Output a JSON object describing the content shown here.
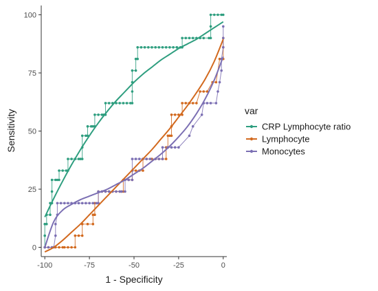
{
  "chart_data": {
    "type": "line",
    "xlabel": "1 - Specificity",
    "ylabel": "Sensitivity",
    "xlim": [
      -102,
      2
    ],
    "ylim": [
      -4,
      104
    ],
    "x_ticks": [
      -100,
      -75,
      -50,
      -25,
      0
    ],
    "y_ticks": [
      0,
      25,
      50,
      75,
      100
    ],
    "grid": false,
    "legend": {
      "title": "var",
      "placement": "right"
    },
    "series": [
      {
        "name": "CRP Lymphocyte ratio",
        "color": "#2e9e7f",
        "points": [
          [
            -100,
            0
          ],
          [
            -100,
            5
          ],
          [
            -100,
            10
          ],
          [
            -99,
            10
          ],
          [
            -99,
            14
          ],
          [
            -97,
            14
          ],
          [
            -97,
            19
          ],
          [
            -96,
            19
          ],
          [
            -96,
            24
          ],
          [
            -96,
            29
          ],
          [
            -94,
            29
          ],
          [
            -93,
            29
          ],
          [
            -92,
            29
          ],
          [
            -92,
            33
          ],
          [
            -90,
            33
          ],
          [
            -88,
            33
          ],
          [
            -87,
            33
          ],
          [
            -87,
            38
          ],
          [
            -85,
            38
          ],
          [
            -83,
            38
          ],
          [
            -81,
            38
          ],
          [
            -80,
            38
          ],
          [
            -79,
            38
          ],
          [
            -79,
            43
          ],
          [
            -79,
            48
          ],
          [
            -77,
            48
          ],
          [
            -76,
            48
          ],
          [
            -76,
            52
          ],
          [
            -74,
            52
          ],
          [
            -73,
            52
          ],
          [
            -72,
            52
          ],
          [
            -72,
            57
          ],
          [
            -70,
            57
          ],
          [
            -68,
            57
          ],
          [
            -67,
            57
          ],
          [
            -66,
            57
          ],
          [
            -66,
            62
          ],
          [
            -64,
            62
          ],
          [
            -62,
            62
          ],
          [
            -60,
            62
          ],
          [
            -58,
            62
          ],
          [
            -56,
            62
          ],
          [
            -54,
            62
          ],
          [
            -52,
            62
          ],
          [
            -51,
            62
          ],
          [
            -51,
            67
          ],
          [
            -51,
            71
          ],
          [
            -51,
            76
          ],
          [
            -49,
            76
          ],
          [
            -49,
            81
          ],
          [
            -48,
            81
          ],
          [
            -48,
            86
          ],
          [
            -46,
            86
          ],
          [
            -44,
            86
          ],
          [
            -42,
            86
          ],
          [
            -40,
            86
          ],
          [
            -38,
            86
          ],
          [
            -36,
            86
          ],
          [
            -34,
            86
          ],
          [
            -32,
            86
          ],
          [
            -30,
            86
          ],
          [
            -28,
            86
          ],
          [
            -26,
            86
          ],
          [
            -24,
            86
          ],
          [
            -23,
            86
          ],
          [
            -23,
            90
          ],
          [
            -21,
            90
          ],
          [
            -19,
            90
          ],
          [
            -17,
            90
          ],
          [
            -15,
            90
          ],
          [
            -13,
            90
          ],
          [
            -11,
            90
          ],
          [
            -8,
            90
          ],
          [
            -7,
            90
          ],
          [
            -7,
            95
          ],
          [
            -7,
            100
          ],
          [
            -5,
            100
          ],
          [
            -3,
            100
          ],
          [
            -1,
            100
          ],
          [
            0,
            100
          ]
        ],
        "fit": [
          [
            -100,
            13
          ],
          [
            -95,
            21
          ],
          [
            -90,
            28.5
          ],
          [
            -85,
            35.5
          ],
          [
            -80,
            42
          ],
          [
            -75,
            48
          ],
          [
            -70,
            53.5
          ],
          [
            -65,
            58.5
          ],
          [
            -60,
            63
          ],
          [
            -55,
            67
          ],
          [
            -50,
            71
          ],
          [
            -45,
            74.5
          ],
          [
            -40,
            77.5
          ],
          [
            -35,
            80.5
          ],
          [
            -30,
            83
          ],
          [
            -25,
            85.5
          ],
          [
            -20,
            87.5
          ],
          [
            -15,
            89.5
          ],
          [
            -10,
            92
          ],
          [
            -5,
            94.5
          ],
          [
            0,
            97
          ]
        ]
      },
      {
        "name": "Lymphocyte",
        "color": "#d2691e",
        "points": [
          [
            -100,
            0
          ],
          [
            -98,
            0
          ],
          [
            -96,
            0
          ],
          [
            -94,
            0
          ],
          [
            -92,
            0
          ],
          [
            -90,
            0
          ],
          [
            -89,
            0
          ],
          [
            -87,
            0
          ],
          [
            -85,
            0
          ],
          [
            -83,
            0
          ],
          [
            -83,
            5
          ],
          [
            -81,
            5
          ],
          [
            -79,
            5
          ],
          [
            -79,
            10
          ],
          [
            -76,
            10
          ],
          [
            -73,
            10
          ],
          [
            -73,
            14
          ],
          [
            -72,
            14
          ],
          [
            -72,
            19
          ],
          [
            -70,
            19
          ],
          [
            -70,
            24
          ],
          [
            -68,
            24
          ],
          [
            -66,
            24
          ],
          [
            -64,
            24
          ],
          [
            -62,
            24
          ],
          [
            -60,
            24
          ],
          [
            -58,
            24
          ],
          [
            -57,
            24
          ],
          [
            -56,
            24
          ],
          [
            -56,
            29
          ],
          [
            -53,
            29
          ],
          [
            -51,
            29
          ],
          [
            -51,
            33
          ],
          [
            -49,
            33
          ],
          [
            -47,
            33
          ],
          [
            -45,
            33
          ],
          [
            -45,
            38
          ],
          [
            -43,
            38
          ],
          [
            -40,
            38
          ],
          [
            -38,
            38
          ],
          [
            -36,
            38
          ],
          [
            -34,
            38
          ],
          [
            -32,
            38
          ],
          [
            -32,
            43
          ],
          [
            -31,
            43
          ],
          [
            -31,
            48
          ],
          [
            -30,
            48
          ],
          [
            -29,
            48
          ],
          [
            -29,
            52
          ],
          [
            -29,
            57
          ],
          [
            -27,
            57
          ],
          [
            -25,
            57
          ],
          [
            -23,
            57
          ],
          [
            -23,
            62
          ],
          [
            -21,
            62
          ],
          [
            -19,
            62
          ],
          [
            -17,
            62
          ],
          [
            -15,
            62
          ],
          [
            -13,
            67
          ],
          [
            -11,
            67
          ],
          [
            -9,
            67
          ],
          [
            -6,
            71
          ],
          [
            -4,
            71
          ],
          [
            -2,
            81
          ],
          [
            0,
            81
          ],
          [
            0,
            86
          ],
          [
            0,
            90
          ]
        ],
        "fit": [
          [
            -100,
            -2
          ],
          [
            -95,
            0
          ],
          [
            -90,
            3
          ],
          [
            -85,
            6.5
          ],
          [
            -80,
            10
          ],
          [
            -75,
            14
          ],
          [
            -70,
            18
          ],
          [
            -65,
            22
          ],
          [
            -60,
            26
          ],
          [
            -55,
            30
          ],
          [
            -50,
            34
          ],
          [
            -45,
            38
          ],
          [
            -40,
            42
          ],
          [
            -35,
            46.5
          ],
          [
            -30,
            51
          ],
          [
            -25,
            56
          ],
          [
            -20,
            61
          ],
          [
            -15,
            66.5
          ],
          [
            -10,
            72.5
          ],
          [
            -5,
            80
          ],
          [
            0,
            89.5
          ]
        ]
      },
      {
        "name": "Monocytes",
        "color": "#7b6fb3",
        "points": [
          [
            -100,
            0
          ],
          [
            -98,
            0
          ],
          [
            -96,
            0
          ],
          [
            -95,
            0
          ],
          [
            -94,
            5
          ],
          [
            -94,
            10
          ],
          [
            -93,
            14
          ],
          [
            -93,
            19
          ],
          [
            -91,
            19
          ],
          [
            -89,
            19
          ],
          [
            -87,
            19
          ],
          [
            -85,
            19
          ],
          [
            -83,
            19
          ],
          [
            -81,
            19
          ],
          [
            -79,
            19
          ],
          [
            -77,
            19
          ],
          [
            -75,
            19
          ],
          [
            -73,
            19
          ],
          [
            -71,
            19
          ],
          [
            -70,
            19
          ],
          [
            -70,
            24
          ],
          [
            -68,
            24
          ],
          [
            -66,
            24
          ],
          [
            -64,
            24
          ],
          [
            -62,
            24
          ],
          [
            -60,
            24
          ],
          [
            -58,
            24
          ],
          [
            -57,
            24
          ],
          [
            -55,
            24
          ],
          [
            -55,
            29
          ],
          [
            -53,
            29
          ],
          [
            -51,
            29
          ],
          [
            -51,
            33
          ],
          [
            -51,
            38
          ],
          [
            -49,
            38
          ],
          [
            -47,
            38
          ],
          [
            -45,
            38
          ],
          [
            -43,
            38
          ],
          [
            -41,
            38
          ],
          [
            -38,
            38
          ],
          [
            -36,
            38
          ],
          [
            -34,
            38
          ],
          [
            -34,
            43
          ],
          [
            -31,
            43
          ],
          [
            -29,
            43
          ],
          [
            -27,
            43
          ],
          [
            -25,
            43
          ],
          [
            -19,
            48
          ],
          [
            -17,
            52
          ],
          [
            -12,
            57
          ],
          [
            -11,
            62
          ],
          [
            -9,
            62
          ],
          [
            -7,
            62
          ],
          [
            -4,
            62
          ],
          [
            -3,
            67
          ],
          [
            -2,
            71
          ],
          [
            -1,
            76
          ],
          [
            -1,
            81
          ],
          [
            0,
            86
          ],
          [
            0,
            90
          ],
          [
            0,
            95
          ]
        ],
        "fit": [
          [
            -100,
            0
          ],
          [
            -95,
            11
          ],
          [
            -90,
            16
          ],
          [
            -85,
            18.5
          ],
          [
            -80,
            20.5
          ],
          [
            -75,
            22
          ],
          [
            -70,
            23.5
          ],
          [
            -65,
            25
          ],
          [
            -60,
            27
          ],
          [
            -55,
            29
          ],
          [
            -50,
            31.5
          ],
          [
            -45,
            34
          ],
          [
            -40,
            37
          ],
          [
            -35,
            40
          ],
          [
            -30,
            43.5
          ],
          [
            -25,
            47.5
          ],
          [
            -20,
            52
          ],
          [
            -15,
            57.5
          ],
          [
            -10,
            64
          ],
          [
            -5,
            72
          ],
          [
            0,
            82
          ]
        ]
      }
    ]
  }
}
